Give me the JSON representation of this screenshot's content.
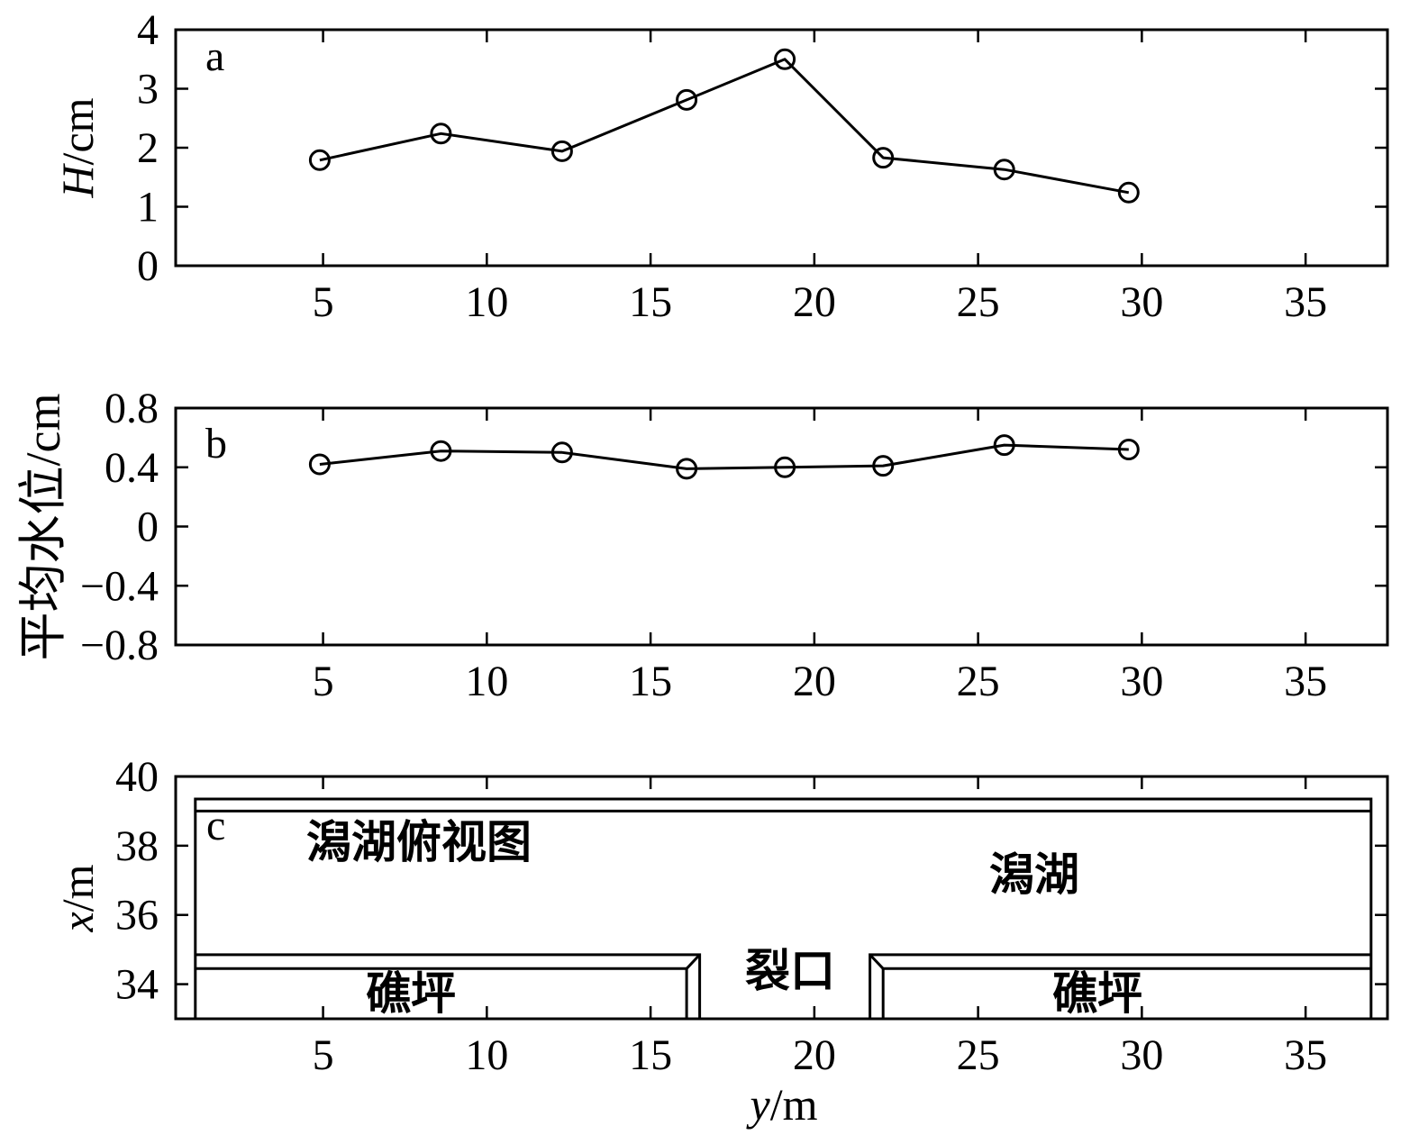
{
  "chart_data": [
    {
      "type": "line",
      "panel_label": "a",
      "ylabel": {
        "var": "H",
        "unit": "/cm"
      },
      "xlim": [
        0.5,
        37.5
      ],
      "ylim": [
        0,
        4
      ],
      "xticks": [
        5,
        10,
        15,
        20,
        25,
        30,
        35
      ],
      "xticklabels": [
        "5",
        "10",
        "15",
        "20",
        "25",
        "30",
        "35"
      ],
      "yticks": [
        0,
        1,
        2,
        3,
        4
      ],
      "yticklabels": [
        "0",
        "1",
        "2",
        "3",
        "4"
      ],
      "grid": false,
      "line_color": "#000000",
      "x": [
        4.9,
        8.6,
        12.3,
        16.1,
        19.1,
        22.1,
        25.8,
        29.6
      ],
      "series": [
        {
          "values": [
            1.79,
            2.24,
            1.94,
            2.81,
            3.5,
            1.83,
            1.63,
            1.24
          ]
        }
      ]
    },
    {
      "type": "line",
      "panel_label": "b",
      "ylabel": {
        "text": "平均水位/cm"
      },
      "xlim": [
        0.5,
        37.5
      ],
      "ylim": [
        -0.8,
        0.8
      ],
      "xticks": [
        5,
        10,
        15,
        20,
        25,
        30,
        35
      ],
      "xticklabels": [
        "5",
        "10",
        "15",
        "20",
        "25",
        "30",
        "35"
      ],
      "yticks": [
        -0.8,
        -0.4,
        0,
        0.4,
        0.8
      ],
      "yticklabels": [
        "−0.8",
        "−0.4",
        "0",
        "0.4",
        "0.8"
      ],
      "grid": false,
      "line_color": "#000000",
      "x": [
        4.9,
        8.6,
        12.3,
        16.1,
        19.1,
        22.1,
        25.8,
        29.6
      ],
      "series": [
        {
          "values": [
            0.42,
            0.51,
            0.5,
            0.39,
            0.4,
            0.41,
            0.55,
            0.52
          ]
        }
      ]
    }
  ],
  "plan_view": {
    "panel_label": "c",
    "ylabel": {
      "var": "x",
      "unit": "/m"
    },
    "xlabel": {
      "var": "y",
      "unit": "/m"
    },
    "xlim": [
      0.5,
      37.5
    ],
    "ylim": [
      33,
      40
    ],
    "xticks": [
      5,
      10,
      15,
      20,
      25,
      30,
      35
    ],
    "xticklabels": [
      "5",
      "10",
      "15",
      "20",
      "25",
      "30",
      "35"
    ],
    "yticks": [
      34,
      36,
      38,
      40
    ],
    "yticklabels": [
      "34",
      "36",
      "38",
      "40"
    ],
    "geometry_m": {
      "lagoon_y": [
        1.1,
        37.0
      ],
      "back_wall_x": [
        39.0,
        39.35
      ],
      "reef_top_x": [
        34.45,
        34.85
      ],
      "left_reef_edge_y": [
        16.1,
        16.5
      ],
      "right_reef_edge_y": [
        21.7,
        22.1
      ]
    },
    "annotations": {
      "title": "潟湖俯视图",
      "lagoon": "潟湖",
      "gap": "裂口",
      "reef_left": "礁坪",
      "reef_right": "礁坪"
    }
  }
}
